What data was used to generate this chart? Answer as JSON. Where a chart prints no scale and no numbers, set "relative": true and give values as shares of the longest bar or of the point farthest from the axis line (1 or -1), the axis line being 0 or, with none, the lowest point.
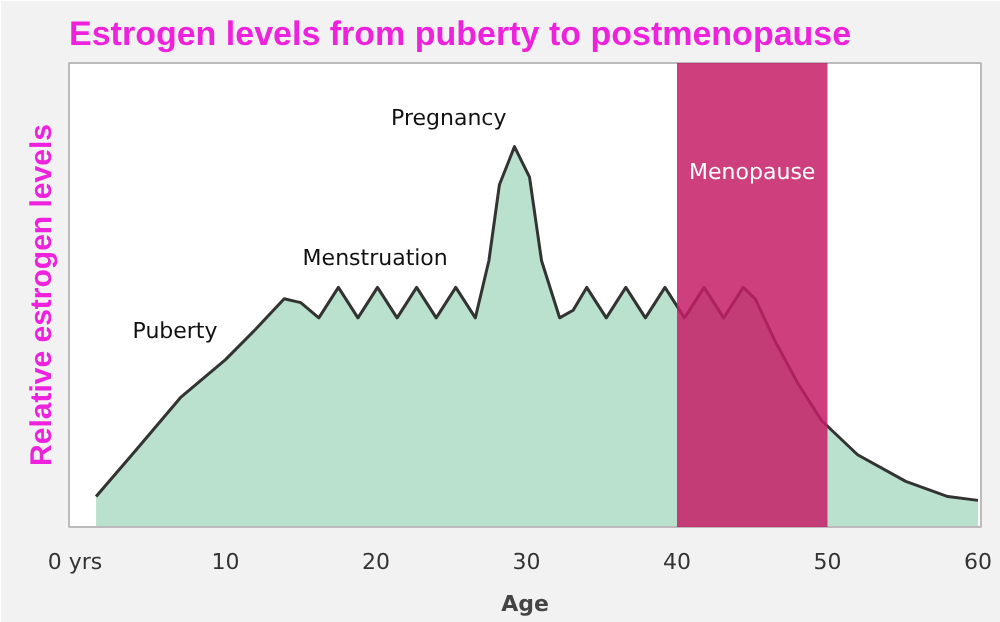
{
  "chart_data": {
    "type": "area",
    "title": "Estrogen levels from puberty to postmenopause",
    "xlabel": "Age",
    "ylabel": "Relative estrogen levels",
    "relative": true,
    "xlim": [
      -0.4,
      60.2
    ],
    "xticks": [
      {
        "value": 0,
        "label": "0 yrs"
      },
      10,
      20,
      30,
      40,
      50,
      60
    ],
    "grid": false,
    "series": [
      {
        "color": "#a9d9c1",
        "x": [
          1.4,
          4,
          7,
          10,
          12,
          13.9,
          15,
          16.2,
          17.5,
          18.8,
          20.1,
          21.4,
          22.7,
          24.0,
          25.3,
          26.6,
          27.5,
          28.2,
          29.2,
          30.2,
          31.0,
          32.2,
          33.1,
          34.0,
          35.3,
          36.6,
          37.9,
          39.2,
          40.5,
          41.8,
          43.1,
          44.4,
          45.2,
          46.5,
          48,
          49.6,
          52,
          55.2,
          58,
          60
        ],
        "values": [
          0.08,
          0.2,
          0.34,
          0.44,
          0.52,
          0.6,
          0.59,
          0.55,
          0.63,
          0.55,
          0.63,
          0.55,
          0.63,
          0.55,
          0.63,
          0.55,
          0.7,
          0.9,
          1.0,
          0.92,
          0.7,
          0.55,
          0.57,
          0.63,
          0.55,
          0.63,
          0.55,
          0.63,
          0.55,
          0.63,
          0.55,
          0.63,
          0.6,
          0.49,
          0.38,
          0.28,
          0.19,
          0.12,
          0.08,
          0.07
        ]
      }
    ],
    "bands": [
      {
        "axis": "x",
        "from": 40,
        "to": 50,
        "label": "Menopause",
        "color": "#c41e66"
      }
    ],
    "annotations": [
      {
        "text": "Puberty",
        "x": 10,
        "y": 0.44
      },
      {
        "text": "Menstruation",
        "x": 25.3,
        "y": 0.63
      },
      {
        "text": "Pregnancy",
        "x": 29.2,
        "y": 1.0
      }
    ]
  }
}
